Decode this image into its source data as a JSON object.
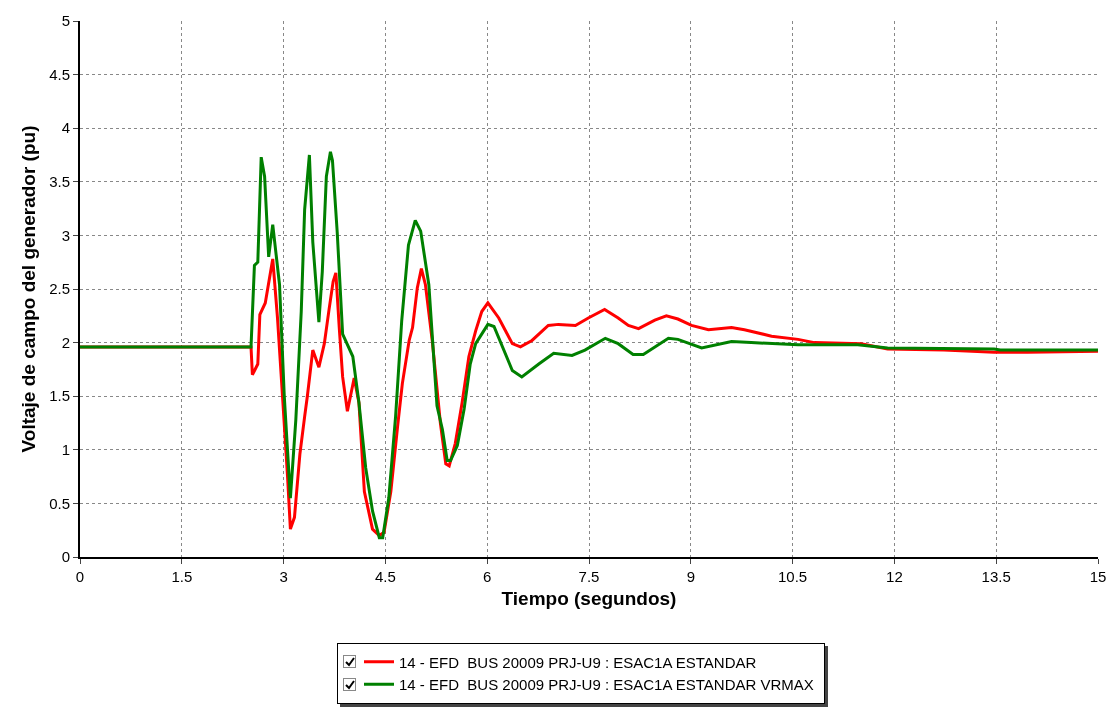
{
  "chart_data": {
    "type": "line",
    "xlabel": "Tiempo (segundos)",
    "ylabel": "Voltaje de campo del generador (pu)",
    "xlim": [
      0,
      15
    ],
    "xticks": [
      0,
      1.5,
      3,
      4.5,
      6,
      7.5,
      9,
      10.5,
      12,
      13.5,
      15
    ],
    "ylim": [
      0,
      5
    ],
    "yticks": [
      0,
      0.5,
      1,
      1.5,
      2,
      2.5,
      3,
      3.5,
      4,
      4.5,
      5
    ],
    "grid": true,
    "legend": "bottom",
    "marker": "none",
    "line_style": "solid",
    "series": [
      {
        "name": "14 - EFD  BUS 20009 PRJ-U9 : ESAC1A ESTANDAR",
        "color": "#ff0000",
        "x": [
          0,
          2.52,
          2.54,
          2.62,
          2.65,
          2.73,
          2.84,
          2.91,
          2.99,
          3.06,
          3.1,
          3.16,
          3.24,
          3.31,
          3.35,
          3.43,
          3.52,
          3.6,
          3.67,
          3.73,
          3.77,
          3.82,
          3.87,
          3.94,
          4.04,
          4.11,
          4.19,
          4.31,
          4.41,
          4.48,
          4.58,
          4.68,
          4.75,
          4.85,
          4.9,
          4.97,
          5.03,
          5.09,
          5.19,
          5.31,
          5.39,
          5.44,
          5.53,
          5.63,
          5.73,
          5.83,
          5.92,
          6.01,
          6.17,
          6.37,
          6.49,
          6.66,
          6.9,
          7.05,
          7.3,
          7.49,
          7.73,
          7.93,
          8.08,
          8.23,
          8.47,
          8.64,
          8.81,
          9.01,
          9.26,
          9.6,
          9.79,
          10.19,
          10.58,
          10.82,
          11.51,
          11.9,
          12.73,
          13.47,
          13.96,
          15
        ],
        "values": [
          1.96,
          1.96,
          1.7,
          1.8,
          2.26,
          2.37,
          2.78,
          2.23,
          1.44,
          0.73,
          0.26,
          0.37,
          0.96,
          1.31,
          1.5,
          1.93,
          1.77,
          1.99,
          2.31,
          2.57,
          2.65,
          2.14,
          1.68,
          1.36,
          1.67,
          1.44,
          0.61,
          0.26,
          0.2,
          0.23,
          0.61,
          1.22,
          1.62,
          2.02,
          2.14,
          2.51,
          2.69,
          2.54,
          2.02,
          1.25,
          0.87,
          0.85,
          1.06,
          1.44,
          1.87,
          2.11,
          2.29,
          2.37,
          2.23,
          1.99,
          1.96,
          2.02,
          2.16,
          2.17,
          2.16,
          2.23,
          2.31,
          2.23,
          2.16,
          2.13,
          2.21,
          2.25,
          2.22,
          2.16,
          2.12,
          2.14,
          2.12,
          2.06,
          2.03,
          2.0,
          1.99,
          1.94,
          1.93,
          1.91,
          1.91,
          1.92
        ]
      },
      {
        "name": "14 - EFD  BUS 20009 PRJ-U9 : ESAC1A ESTANDAR VRMAX",
        "color": "#008000",
        "x": [
          0,
          2.52,
          2.57,
          2.62,
          2.67,
          2.72,
          2.78,
          2.84,
          2.94,
          3.01,
          3.1,
          3.18,
          3.26,
          3.31,
          3.38,
          3.43,
          3.52,
          3.57,
          3.63,
          3.69,
          3.72,
          3.79,
          3.87,
          4.02,
          4.11,
          4.21,
          4.31,
          4.41,
          4.46,
          4.55,
          4.65,
          4.74,
          4.84,
          4.94,
          5.02,
          5.14,
          5.26,
          5.34,
          5.41,
          5.46,
          5.56,
          5.66,
          5.75,
          5.83,
          6.01,
          6.1,
          6.37,
          6.51,
          6.76,
          6.98,
          7.25,
          7.44,
          7.74,
          7.93,
          8.15,
          8.3,
          8.67,
          8.81,
          9.16,
          9.6,
          9.89,
          10.58,
          11.46,
          11.9,
          13.47,
          13.56,
          15
        ],
        "values": [
          1.96,
          1.96,
          2.72,
          2.75,
          3.73,
          3.55,
          2.8,
          3.1,
          2.54,
          1.5,
          0.55,
          1.28,
          2.29,
          3.24,
          3.75,
          2.94,
          2.19,
          2.66,
          3.55,
          3.78,
          3.7,
          3.03,
          2.08,
          1.87,
          1.44,
          0.83,
          0.43,
          0.18,
          0.18,
          0.55,
          1.31,
          2.2,
          2.91,
          3.14,
          3.04,
          2.54,
          1.41,
          1.19,
          0.9,
          0.9,
          1.04,
          1.38,
          1.8,
          1.99,
          2.17,
          2.15,
          1.74,
          1.68,
          1.8,
          1.9,
          1.88,
          1.93,
          2.04,
          1.99,
          1.89,
          1.89,
          2.04,
          2.03,
          1.95,
          2.01,
          2.0,
          1.98,
          1.98,
          1.95,
          1.94,
          1.93,
          1.93
        ]
      }
    ]
  }
}
